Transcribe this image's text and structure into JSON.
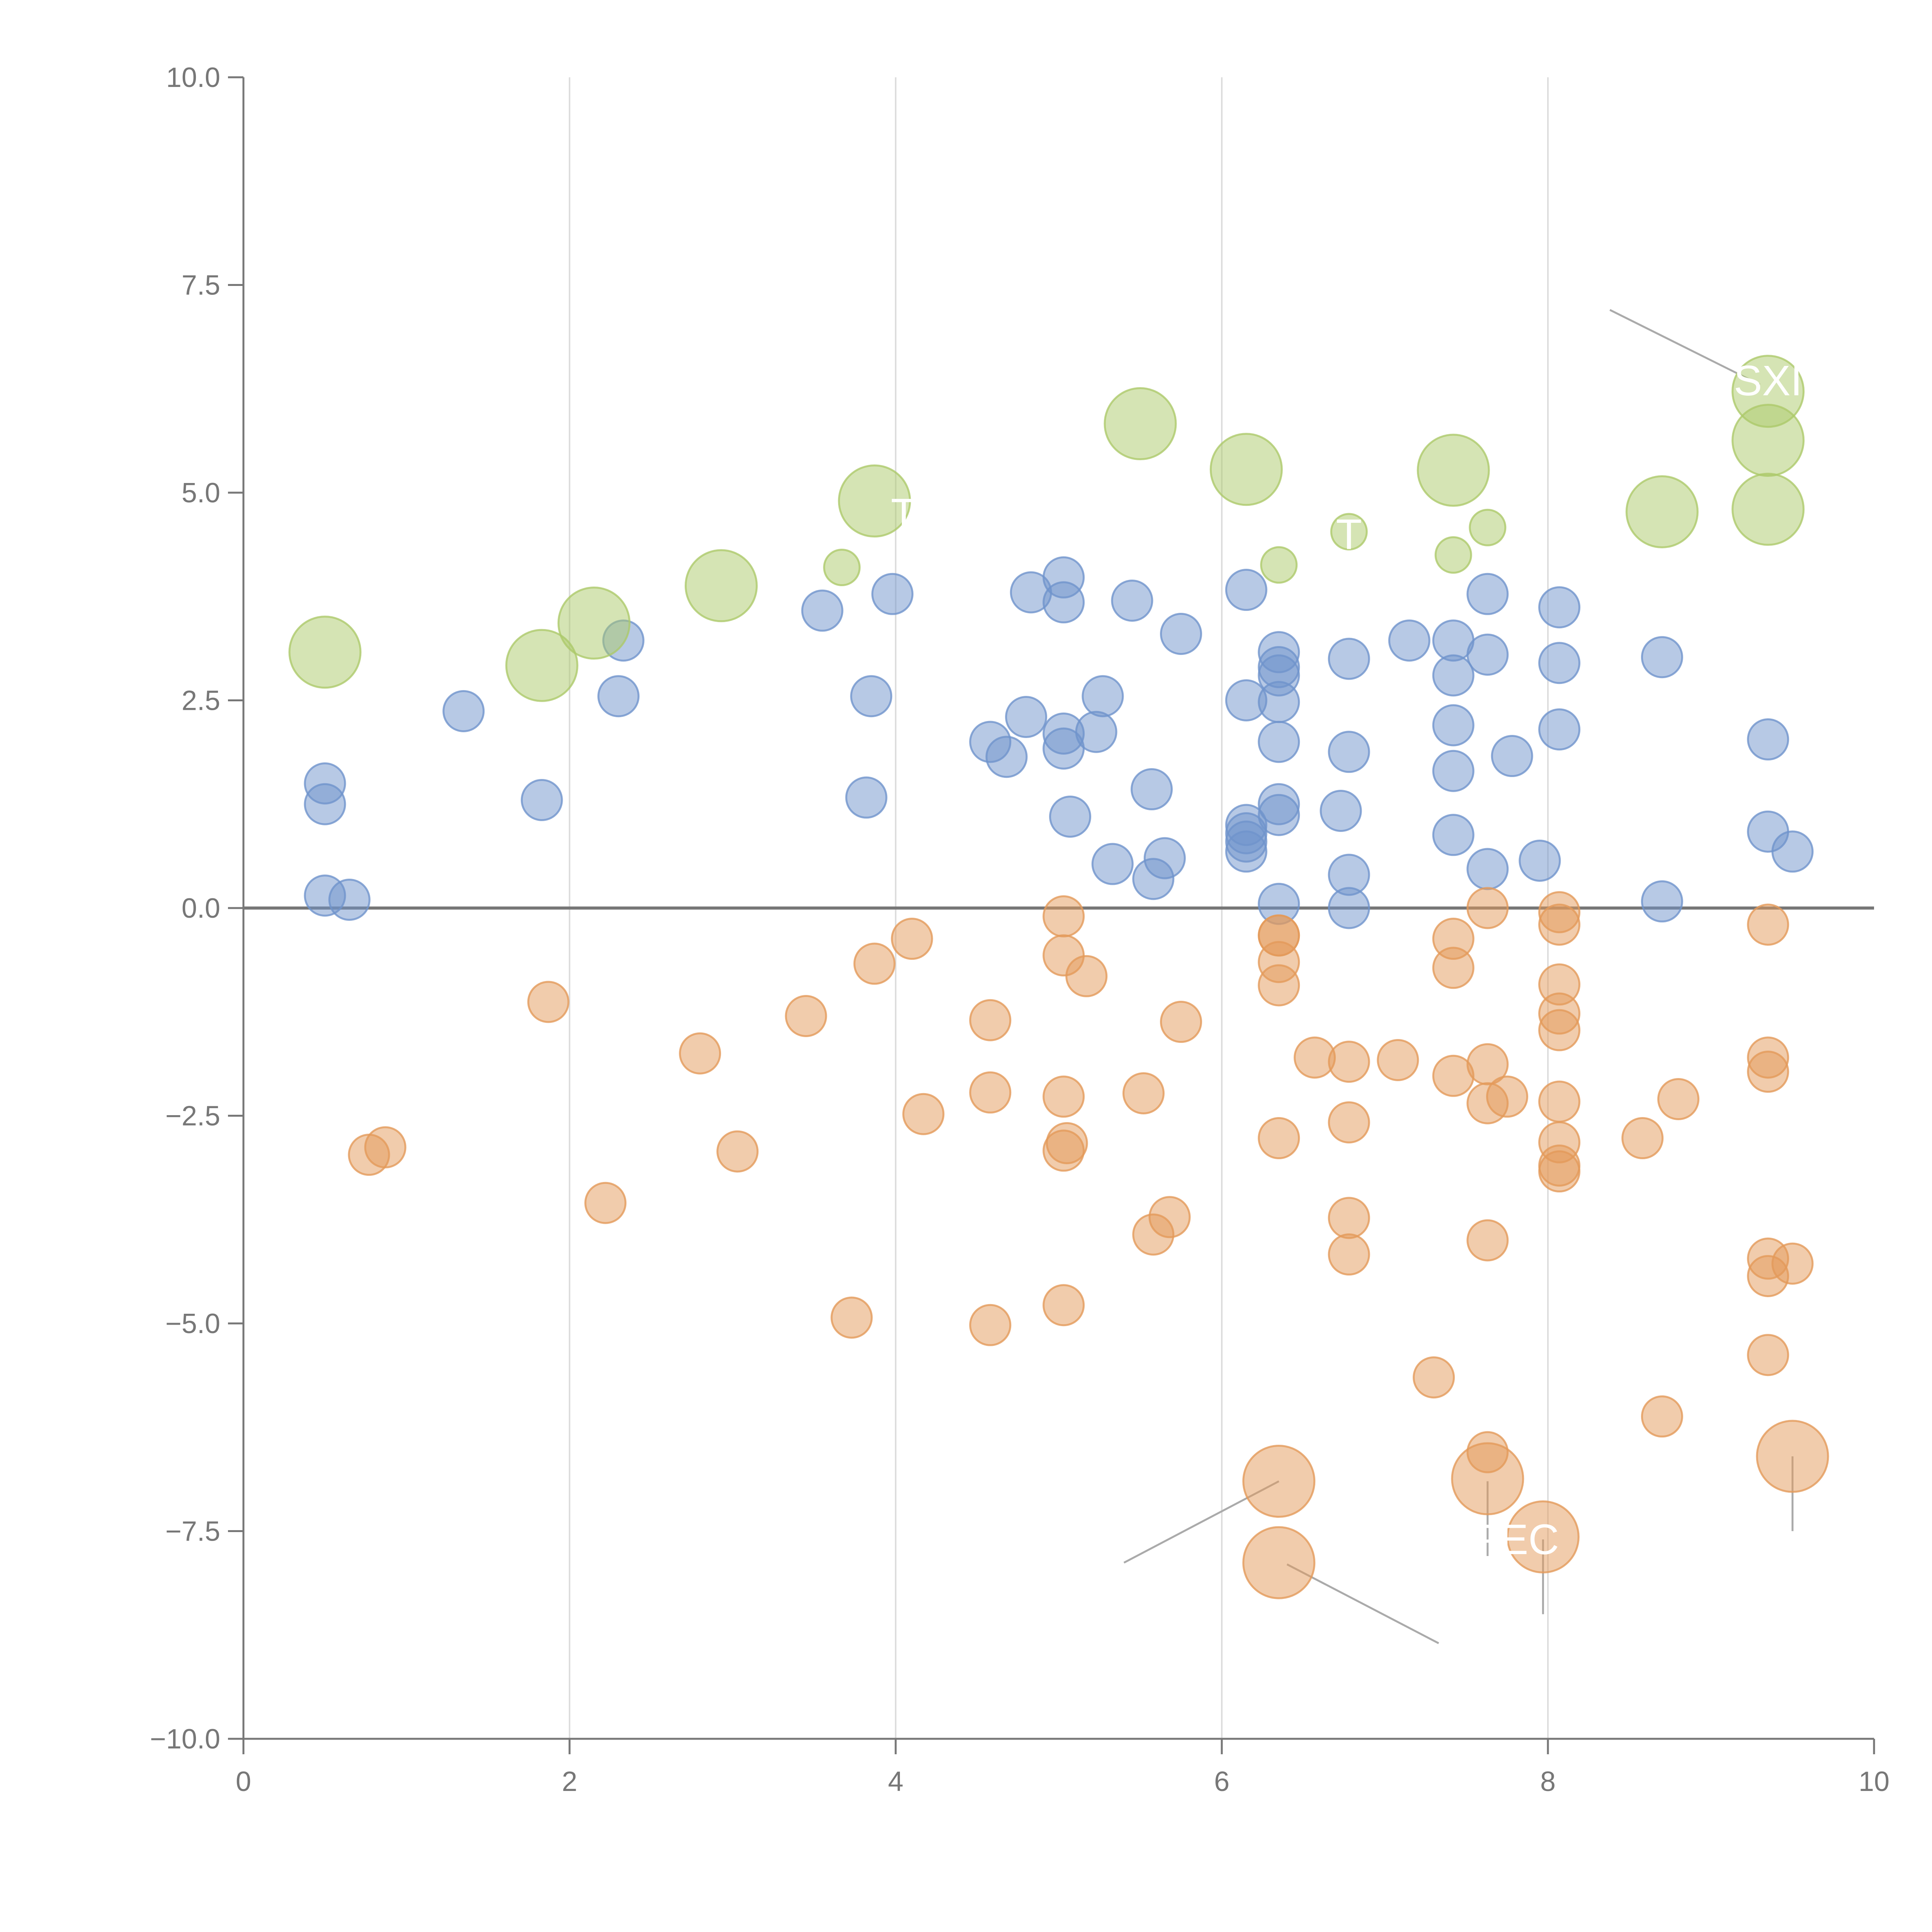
{
  "chart_data": {
    "type": "scatter",
    "title": "",
    "xlabel": "",
    "ylabel": "",
    "xlim": [
      0,
      10
    ],
    "ylim": [
      -10,
      10
    ],
    "x_ticks": [
      0,
      2,
      4,
      6,
      8,
      10
    ],
    "x_tick_labels": [
      "0",
      "2",
      "4",
      "6",
      "8",
      "10"
    ],
    "y_ticks": [
      10,
      7.5,
      5,
      2.5,
      0,
      -2.5,
      -5,
      -7.5,
      -10
    ],
    "y_tick_labels": [
      "10.0",
      "7.5",
      "5.0",
      "2.5",
      "0.0",
      "−2.5",
      "−5.0",
      "−7.5",
      "−10.0"
    ],
    "vertical_gridlines_at": [
      2,
      4,
      6,
      8
    ],
    "reference_line_y": 0,
    "colors": {
      "blue": "#6f93cc",
      "orange": "#e39a5a",
      "green": "#acc96a",
      "axis": "#777777",
      "grid": "#dddddd",
      "zero_line": "#777777",
      "leader": "#aaaaaa"
    },
    "series": [
      {
        "name": "blue",
        "points": [
          [
            0.5,
            1.5
          ],
          [
            0.5,
            1.25
          ],
          [
            0.5,
            0.15
          ],
          [
            0.65,
            0.1
          ],
          [
            1.35,
            2.37
          ],
          [
            1.83,
            1.3
          ],
          [
            2.3,
            2.55
          ],
          [
            2.33,
            3.22
          ],
          [
            3.55,
            3.58
          ],
          [
            3.82,
            1.33
          ],
          [
            3.85,
            2.55
          ],
          [
            3.98,
            3.78
          ],
          [
            4.58,
            2.0
          ],
          [
            4.68,
            1.82
          ],
          [
            4.8,
            2.3
          ],
          [
            4.83,
            3.8
          ],
          [
            5.03,
            3.98
          ],
          [
            5.03,
            3.68
          ],
          [
            5.03,
            2.1
          ],
          [
            5.03,
            1.92
          ],
          [
            5.07,
            1.1
          ],
          [
            5.23,
            2.12
          ],
          [
            5.27,
            2.55
          ],
          [
            5.33,
            0.53
          ],
          [
            5.45,
            3.7
          ],
          [
            5.57,
            1.43
          ],
          [
            5.58,
            0.35
          ],
          [
            5.65,
            0.6
          ],
          [
            5.75,
            3.3
          ],
          [
            6.15,
            3.83
          ],
          [
            6.15,
            2.5
          ],
          [
            6.15,
            1.0
          ],
          [
            6.15,
            0.9
          ],
          [
            6.15,
            0.8
          ],
          [
            6.15,
            0.68
          ],
          [
            6.35,
            3.08
          ],
          [
            6.35,
            2.9
          ],
          [
            6.35,
            2.8
          ],
          [
            6.35,
            2.48
          ],
          [
            6.35,
            2.0
          ],
          [
            6.35,
            1.25
          ],
          [
            6.35,
            1.12
          ],
          [
            6.35,
            0.05
          ],
          [
            6.73,
            1.17
          ],
          [
            6.78,
            3.0
          ],
          [
            6.78,
            1.88
          ],
          [
            6.78,
            0.4
          ],
          [
            6.78,
            0.0
          ],
          [
            7.15,
            3.22
          ],
          [
            7.42,
            3.22
          ],
          [
            7.42,
            2.8
          ],
          [
            7.42,
            2.2
          ],
          [
            7.42,
            1.65
          ],
          [
            7.42,
            0.88
          ],
          [
            7.63,
            3.78
          ],
          [
            7.63,
            3.05
          ],
          [
            7.63,
            0.47
          ],
          [
            7.78,
            1.83
          ],
          [
            7.95,
            0.57
          ],
          [
            8.07,
            3.62
          ],
          [
            8.07,
            2.95
          ],
          [
            8.07,
            2.15
          ],
          [
            8.7,
            3.02
          ],
          [
            8.7,
            0.08
          ],
          [
            9.35,
            2.03
          ],
          [
            9.35,
            0.92
          ],
          [
            9.5,
            0.68
          ]
        ]
      },
      {
        "name": "orange",
        "points": [
          [
            0.77,
            -2.97
          ],
          [
            0.87,
            -2.88
          ],
          [
            1.87,
            -1.13
          ],
          [
            2.22,
            -3.55
          ],
          [
            2.8,
            -1.75
          ],
          [
            3.03,
            -2.93
          ],
          [
            3.45,
            -1.3
          ],
          [
            3.73,
            -4.93
          ],
          [
            3.87,
            -0.67
          ],
          [
            4.1,
            -0.37
          ],
          [
            4.17,
            -2.48
          ],
          [
            4.58,
            -1.35
          ],
          [
            4.58,
            -2.22
          ],
          [
            4.58,
            -5.02
          ],
          [
            5.03,
            -0.1
          ],
          [
            5.03,
            -0.57
          ],
          [
            5.03,
            -2.27
          ],
          [
            5.05,
            -2.83
          ],
          [
            5.03,
            -2.92
          ],
          [
            5.03,
            -4.78
          ],
          [
            5.17,
            -0.82
          ],
          [
            5.52,
            -2.23
          ],
          [
            5.58,
            -3.93
          ],
          [
            5.68,
            -3.72
          ],
          [
            5.75,
            -1.37
          ],
          [
            6.35,
            -0.33
          ],
          [
            6.35,
            -0.65
          ],
          [
            6.35,
            -0.93
          ],
          [
            6.35,
            -2.77
          ],
          [
            6.57,
            -1.8
          ],
          [
            6.78,
            -1.85
          ],
          [
            6.78,
            -2.58
          ],
          [
            6.78,
            -3.73
          ],
          [
            6.78,
            -4.17
          ],
          [
            7.08,
            -1.83
          ],
          [
            7.3,
            -5.65
          ],
          [
            7.42,
            -0.37
          ],
          [
            7.42,
            -0.72
          ],
          [
            7.42,
            -2.02
          ],
          [
            7.63,
            0.0
          ],
          [
            7.63,
            -1.88
          ],
          [
            7.63,
            -2.35
          ],
          [
            7.75,
            -2.27
          ],
          [
            7.63,
            -4.0
          ],
          [
            7.63,
            -6.55
          ],
          [
            8.07,
            -0.05
          ],
          [
            8.07,
            -0.2
          ],
          [
            8.07,
            -0.92
          ],
          [
            8.07,
            -1.27
          ],
          [
            8.07,
            -1.47
          ],
          [
            8.07,
            -2.33
          ],
          [
            8.07,
            -2.82
          ],
          [
            8.07,
            -3.1
          ],
          [
            8.07,
            -3.17
          ],
          [
            8.58,
            -2.77
          ],
          [
            8.8,
            -2.3
          ],
          [
            8.7,
            -6.12
          ],
          [
            9.35,
            -0.2
          ],
          [
            9.35,
            -1.8
          ],
          [
            9.35,
            -1.97
          ],
          [
            9.35,
            -4.22
          ],
          [
            9.35,
            -4.43
          ],
          [
            9.5,
            -4.28
          ],
          [
            9.35,
            -5.38
          ],
          [
            6.35,
            -0.33
          ]
        ]
      },
      {
        "name": "orange-large",
        "points": [
          [
            6.35,
            -6.9
          ],
          [
            6.35,
            -7.88
          ],
          [
            7.63,
            -6.87
          ],
          [
            7.97,
            -7.57
          ],
          [
            9.5,
            -6.6
          ]
        ]
      },
      {
        "name": "green",
        "points": [
          [
            0.5,
            3.08
          ],
          [
            1.83,
            2.92
          ],
          [
            2.15,
            3.43
          ],
          [
            2.93,
            3.88
          ],
          [
            3.87,
            4.9
          ],
          [
            5.5,
            5.83
          ],
          [
            6.15,
            5.28
          ],
          [
            7.42,
            5.27
          ],
          [
            8.7,
            4.77
          ],
          [
            9.35,
            6.22
          ],
          [
            9.35,
            5.63
          ],
          [
            9.35,
            4.8
          ]
        ]
      },
      {
        "name": "green-small",
        "points": [
          [
            3.67,
            4.1
          ],
          [
            6.35,
            4.13
          ],
          [
            6.78,
            4.53
          ],
          [
            7.42,
            4.25
          ],
          [
            7.63,
            4.58
          ]
        ]
      }
    ],
    "annotations": [
      {
        "label": "SXI",
        "x": 9.35,
        "y": 6.35
      },
      {
        "label": "PEC",
        "x": 7.8,
        "y": -7.6
      },
      {
        "label": "T",
        "x": 4.05,
        "y": 4.75
      },
      {
        "label": "T",
        "x": 6.78,
        "y": 4.5
      }
    ]
  }
}
